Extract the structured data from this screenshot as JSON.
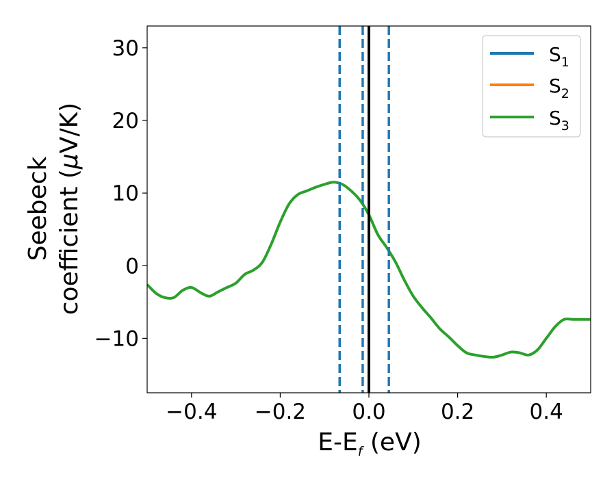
{
  "chart_data": {
    "type": "line",
    "title": "",
    "xlabel": {
      "base": "E-E",
      "sub": "f",
      "unit": " (eV)"
    },
    "ylabel": {
      "line1": "Seebeck",
      "line2_prefix": "coefficient  (",
      "mu": "μ",
      "line2_suffix": "V/K)"
    },
    "xlim": [
      -0.5,
      0.5
    ],
    "ylim": [
      -17.5,
      33.0
    ],
    "xticks": [
      -0.4,
      -0.2,
      0.0,
      0.2,
      0.4
    ],
    "xtick_labels": [
      "−0.4",
      "−0.2",
      "0.0",
      "0.2",
      "0.4"
    ],
    "yticks": [
      -10,
      0,
      10,
      20,
      30
    ],
    "ytick_labels": [
      "−10",
      "0",
      "10",
      "20",
      "30"
    ],
    "grid": false,
    "legend_position": "top-right",
    "series": [
      {
        "name": "S",
        "sub": "1",
        "color": "#1f77b4",
        "x": [],
        "y": []
      },
      {
        "name": "S",
        "sub": "2",
        "color": "#ff7f0e",
        "x": [],
        "y": []
      },
      {
        "name": "S",
        "sub": "3",
        "color": "#2ca02c",
        "x": [
          -0.5,
          -0.48,
          -0.46,
          -0.44,
          -0.42,
          -0.4,
          -0.38,
          -0.36,
          -0.34,
          -0.32,
          -0.3,
          -0.28,
          -0.26,
          -0.24,
          -0.22,
          -0.2,
          -0.18,
          -0.16,
          -0.14,
          -0.12,
          -0.1,
          -0.08,
          -0.06,
          -0.04,
          -0.02,
          0.0,
          0.02,
          0.04,
          0.06,
          0.08,
          0.1,
          0.12,
          0.14,
          0.16,
          0.18,
          0.2,
          0.22,
          0.24,
          0.26,
          0.28,
          0.3,
          0.32,
          0.34,
          0.36,
          0.38,
          0.4,
          0.42,
          0.44,
          0.46,
          0.48,
          0.5
        ],
        "y": [
          -2.6,
          -3.8,
          -4.4,
          -4.4,
          -3.4,
          -3.0,
          -3.7,
          -4.2,
          -3.6,
          -3.0,
          -2.4,
          -1.2,
          -0.6,
          0.5,
          3.0,
          6.0,
          8.5,
          9.8,
          10.3,
          10.8,
          11.2,
          11.5,
          11.2,
          10.3,
          9.0,
          7.0,
          4.3,
          2.5,
          0.5,
          -2.0,
          -4.2,
          -5.8,
          -7.2,
          -8.7,
          -9.8,
          -11.0,
          -12.0,
          -12.3,
          -12.5,
          -12.6,
          -12.3,
          -11.9,
          -12.0,
          -12.3,
          -11.6,
          -10.0,
          -8.4,
          -7.4,
          -7.4,
          -7.4,
          -7.4
        ]
      }
    ],
    "reference_lines": [
      {
        "x": -0.066,
        "style": "dashed",
        "color": "#1f77b4"
      },
      {
        "x": -0.014,
        "style": "dashed",
        "color": "#1f77b4"
      },
      {
        "x": 0.0,
        "style": "solid",
        "color": "#000000"
      },
      {
        "x": 0.045,
        "style": "dashed",
        "color": "#1f77b4"
      }
    ]
  }
}
